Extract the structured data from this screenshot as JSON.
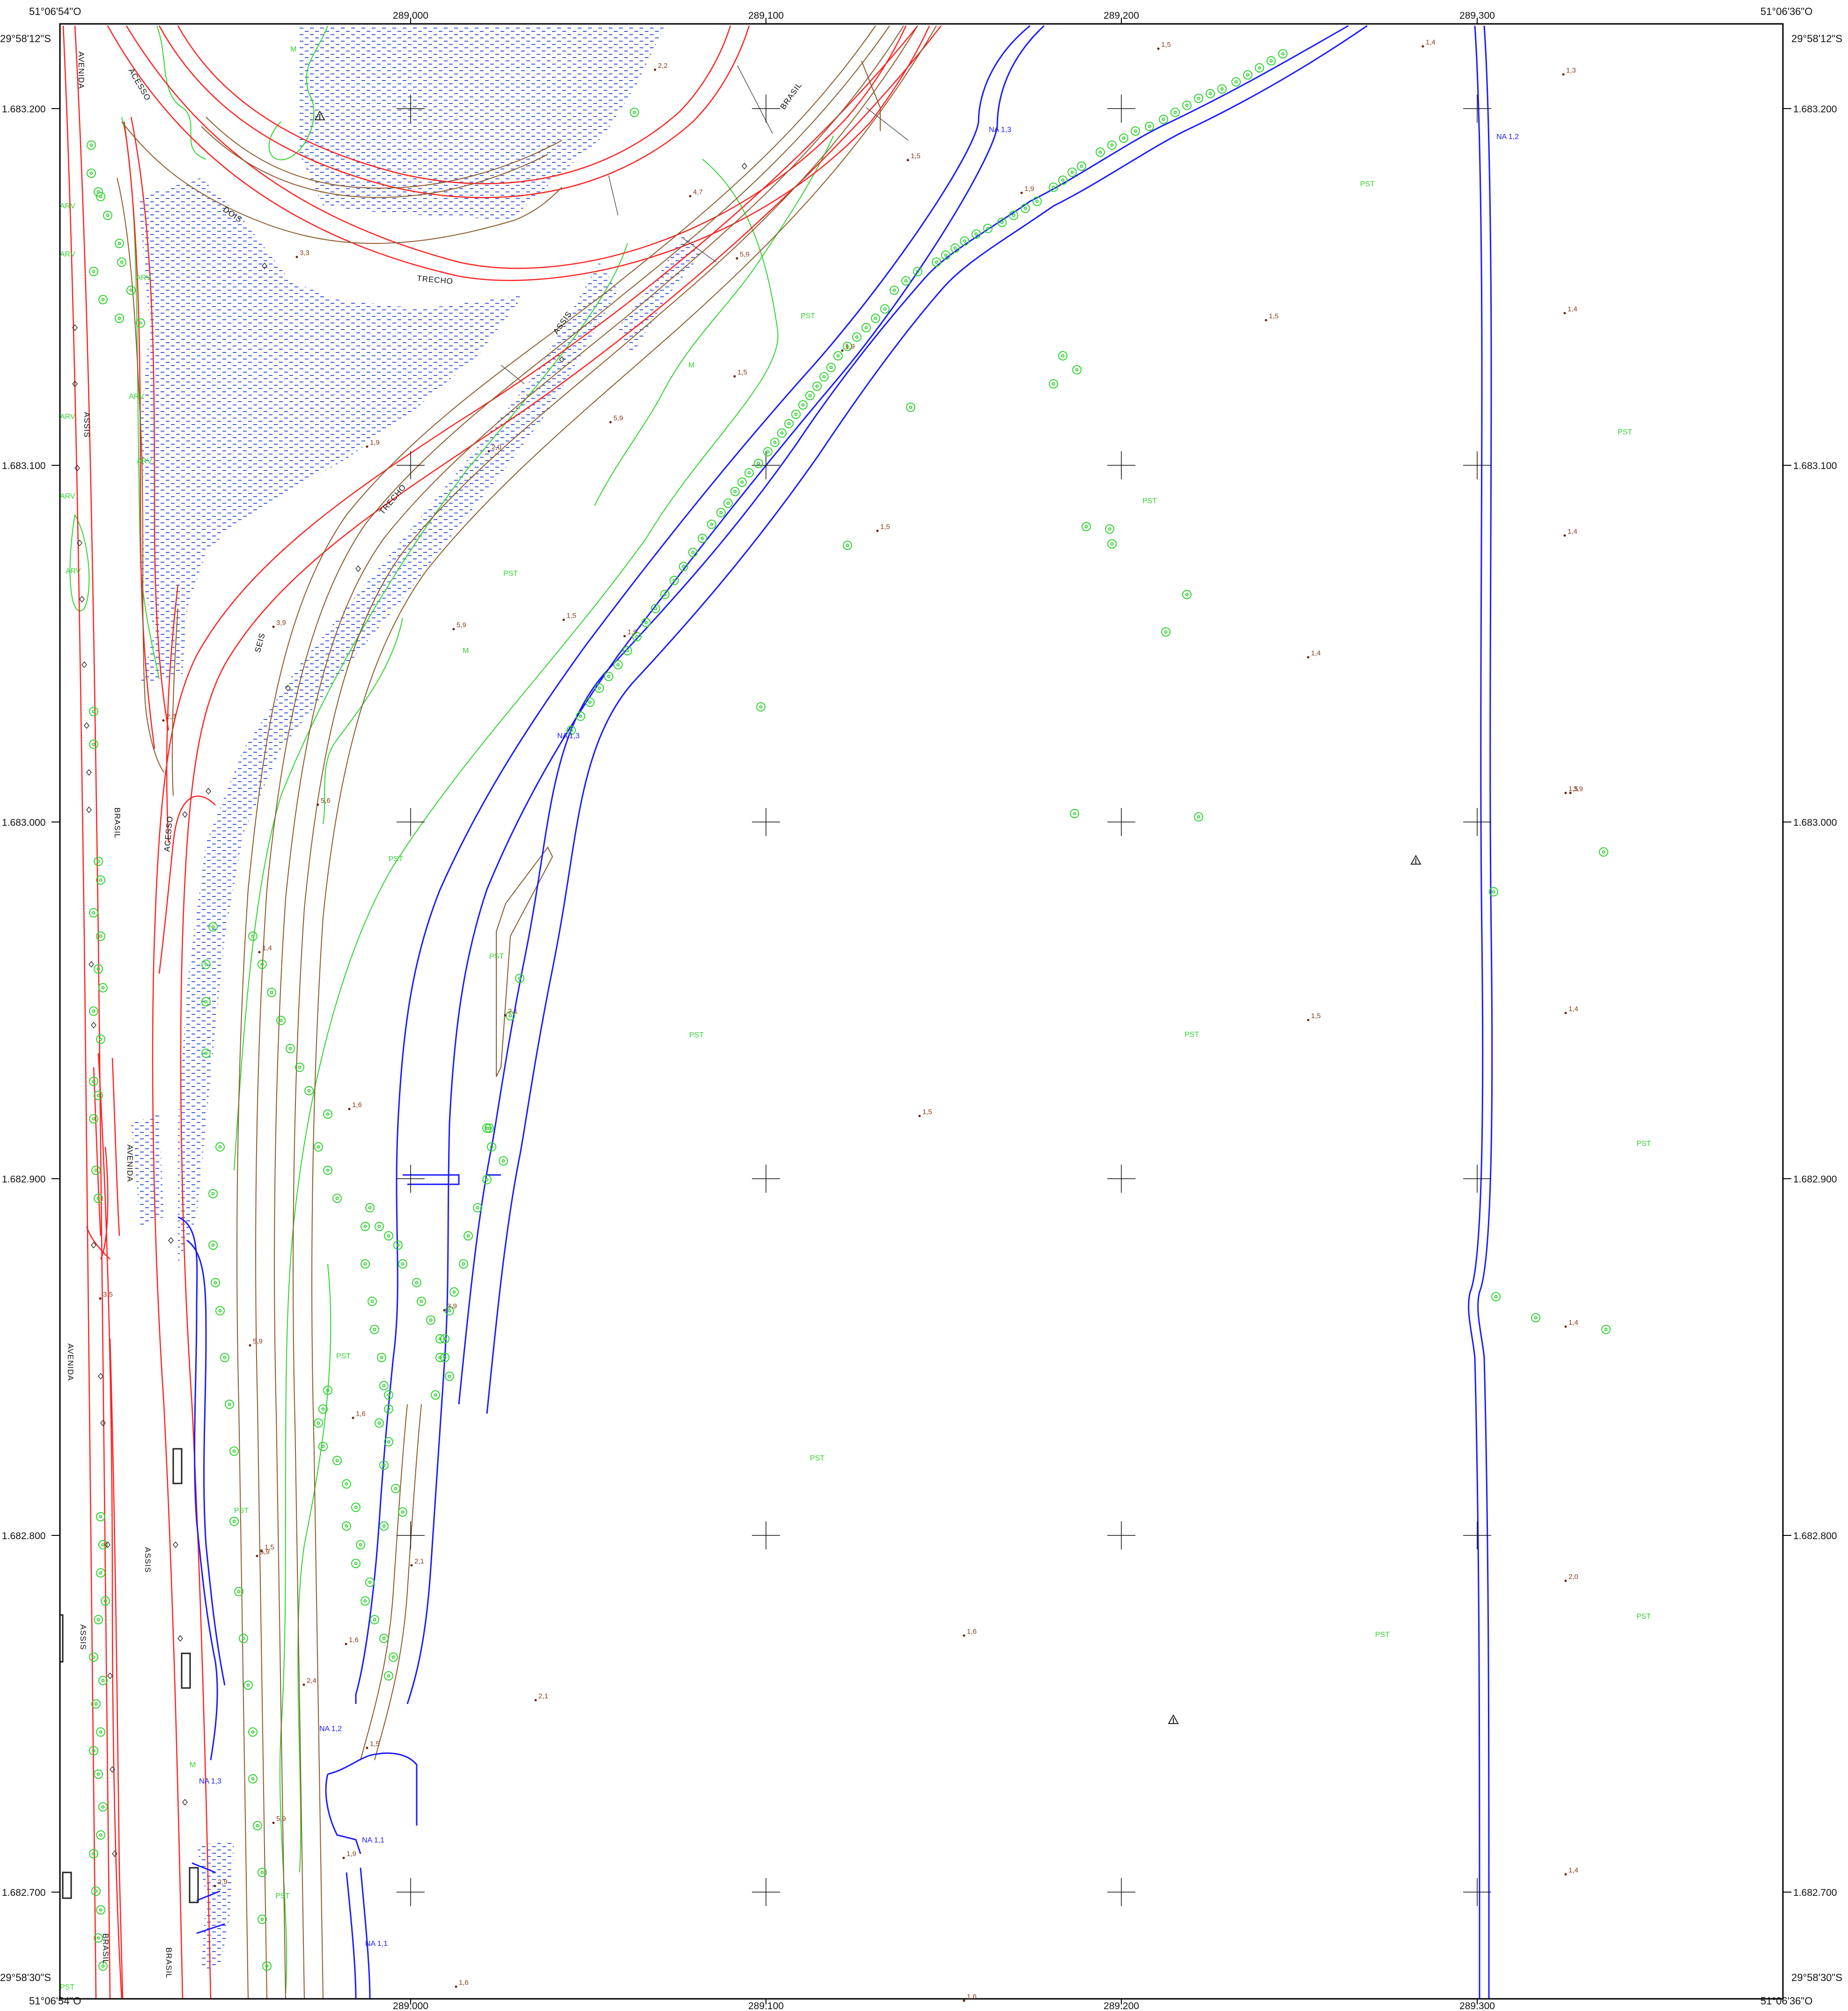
{
  "corners": {
    "top_left": "51°06'54\"O",
    "top_right": "51°06'36\"O",
    "bottom_left": "51°06'54\"O",
    "bottom_right": "51°06'36\"O",
    "left_top": "29°58'12\"S",
    "right_top": "29°58'12\"S",
    "left_bottom": "29°58'30\"S",
    "right_bottom": "29°58'30\"S"
  },
  "easting_labels": [
    "289.000",
    "289.100",
    "289.200",
    "289.300"
  ],
  "northing_labels": [
    "1.683.200",
    "1.683.100",
    "1.683.000",
    "1.682.900",
    "1.682.800",
    "1.682.700"
  ],
  "street_labels": [
    "AVENIDA",
    "ACESSO",
    "DOIS",
    "TRECHO",
    "ASSIS",
    "BRASIL",
    "TRECHO",
    "SEIS",
    "ACESSO",
    "BRASIL",
    "AVENIDA",
    "AVENIDA",
    "ASSIS",
    "ASSIS",
    "BRASIL",
    "ASSIS",
    "BRASIL"
  ],
  "vegetation_labels": [
    "M",
    "ARV",
    "ARV",
    "ARV",
    "ARV",
    "ARV",
    "ARV",
    "ARV",
    "ARV",
    "PST",
    "PST",
    "PST",
    "PST",
    "PST",
    "PST",
    "PST",
    "PST",
    "PST",
    "PST",
    "PST",
    "PST",
    "PST",
    "PST",
    "PST",
    "PST",
    "PST",
    "M",
    "M",
    "M"
  ],
  "elevations": [
    "2,2",
    "1,5",
    "1,4",
    "1,3",
    "4,7",
    "1,5",
    "1,9",
    "3,3",
    "5,9",
    "1,5",
    "1,4",
    "1,9",
    "1,5",
    "5,9",
    "1,9",
    "2,0",
    "1,5",
    "1,4",
    "3,9",
    "1,5",
    "5,9",
    "1,9",
    "1,4",
    "2,3",
    "5,6",
    "1,5",
    "1,4",
    "3,9",
    "2,1",
    "1,5",
    "1,4",
    "1,6",
    "1,5",
    "3,5",
    "3,9",
    "5,9",
    "1,4",
    "1,6",
    "2,1",
    "1,5",
    "5,9",
    "2,1",
    "1,6",
    "1,6",
    "2,4",
    "1,5",
    "2,0",
    "5,9",
    "1,9",
    "1,4",
    "2,9",
    "1,6",
    "1,6"
  ],
  "water_levels": [
    "NA 1,3",
    "NA 1,2",
    "NA 1,3",
    "NA 1,2",
    "NA 1,3",
    "NA 1,1",
    "NA 1,1"
  ],
  "colors": {
    "road": "#ff2020",
    "contour": "#8b5a2b",
    "water": "#1a1aff",
    "vegetation": "#2fd32f",
    "marsh": "#2a4bd6",
    "elevation_text": "#8b3a1a",
    "frame": "#000000"
  }
}
